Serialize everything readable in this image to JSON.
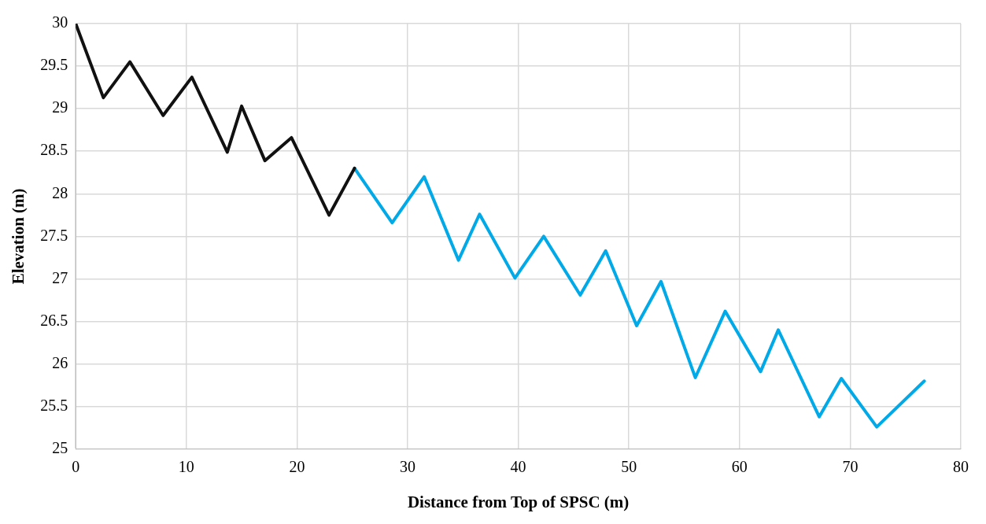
{
  "chart_data": {
    "type": "line",
    "xlabel": "Distance from Top of SPSC (m)",
    "ylabel": "Elevation (m)",
    "xlim": [
      0,
      80
    ],
    "xticks": [
      0,
      10,
      20,
      30,
      40,
      50,
      60,
      70,
      80
    ],
    "ylim": [
      25,
      30
    ],
    "yticks": [
      25,
      25.5,
      26,
      26.5,
      27,
      27.5,
      28,
      28.5,
      29,
      29.5,
      30
    ],
    "grid": true,
    "marker": "none",
    "line_style": "solid",
    "series": [
      {
        "color": "#111111",
        "x": [
          0,
          2.5,
          4.9,
          7.9,
          10.5,
          13.7,
          15,
          17.1,
          19.5,
          22.9,
          25.2
        ],
        "values": [
          30,
          29.13,
          29.55,
          28.92,
          29.37,
          28.49,
          29.03,
          28.39,
          28.66,
          27.75,
          28.3
        ]
      },
      {
        "color": "#00a9e8",
        "x": [
          25.2,
          28.6,
          31.5,
          34.6,
          36.5,
          39.7,
          42.3,
          45.6,
          47.9,
          50.7,
          52.9,
          56.0,
          58.7,
          61.9,
          63.5,
          67.2,
          69.2,
          72.4,
          76.7
        ],
        "values": [
          28.3,
          27.66,
          28.2,
          27.22,
          27.76,
          27.01,
          27.5,
          26.81,
          27.33,
          26.45,
          26.97,
          25.84,
          26.62,
          25.91,
          26.4,
          25.38,
          25.83,
          25.26,
          25.8
        ]
      }
    ]
  }
}
